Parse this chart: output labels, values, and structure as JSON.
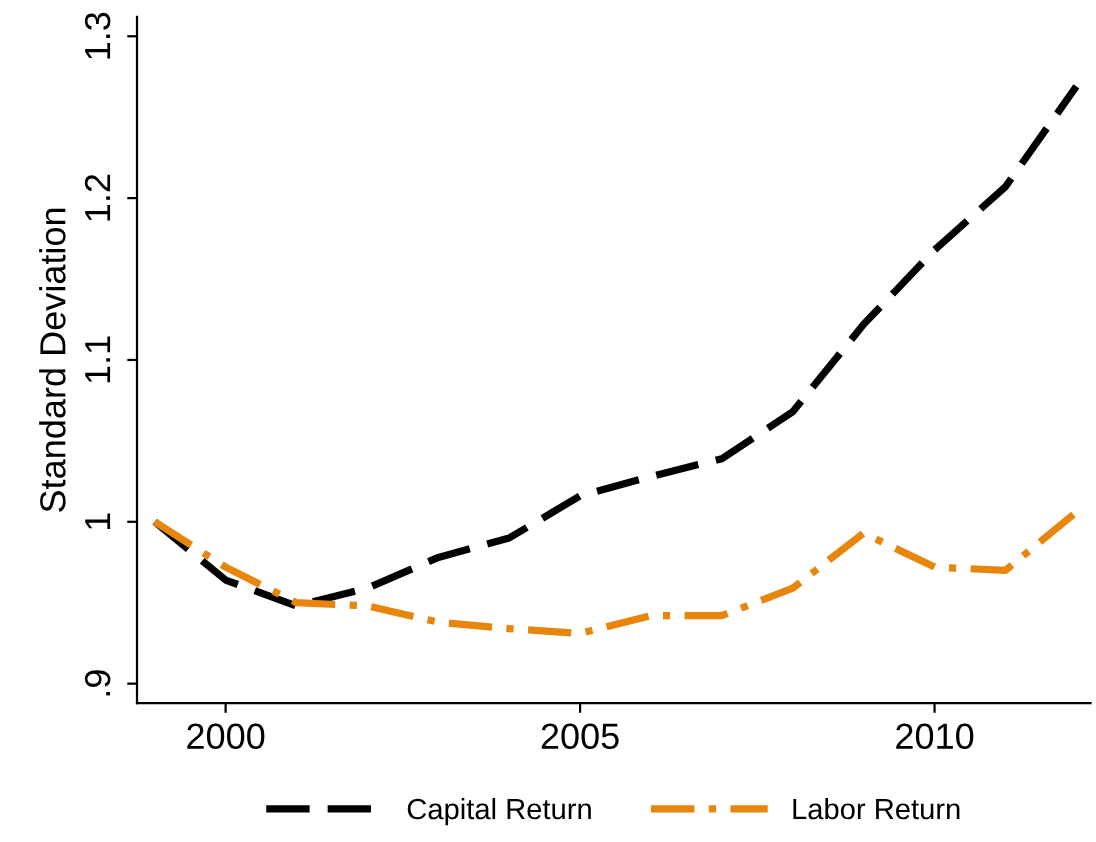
{
  "chart_data": {
    "type": "line",
    "ylabel": "Standard Deviation",
    "x": [
      1999,
      2000,
      2001,
      2002,
      2003,
      2004,
      2005,
      2006,
      2007,
      2008,
      2009,
      2010,
      2011,
      2012
    ],
    "series": [
      {
        "name": "Capital Return",
        "color": "#000000",
        "line_style": "dashed",
        "values": [
          1.0,
          0.964,
          0.948,
          0.959,
          0.978,
          0.99,
          1.016,
          1.028,
          1.039,
          1.068,
          1.122,
          1.168,
          1.207,
          1.269
        ]
      },
      {
        "name": "Labor Return",
        "color": "#e8850c",
        "line_style": "dashdot",
        "values": [
          1.0,
          0.972,
          0.95,
          0.948,
          0.938,
          0.934,
          0.931,
          0.942,
          0.942,
          0.959,
          0.993,
          0.972,
          0.97,
          1.006
        ]
      }
    ],
    "xlim": [
      1998.75,
      2012.2
    ],
    "xticks": [
      2000,
      2005,
      2010
    ],
    "ylim": [
      0.888,
      1.312
    ],
    "yticks": [
      {
        "value": 0.9,
        "label": ".9"
      },
      1,
      1.1,
      1.2,
      1.3
    ],
    "grid": false,
    "legend": "bottom",
    "marker": "none"
  }
}
